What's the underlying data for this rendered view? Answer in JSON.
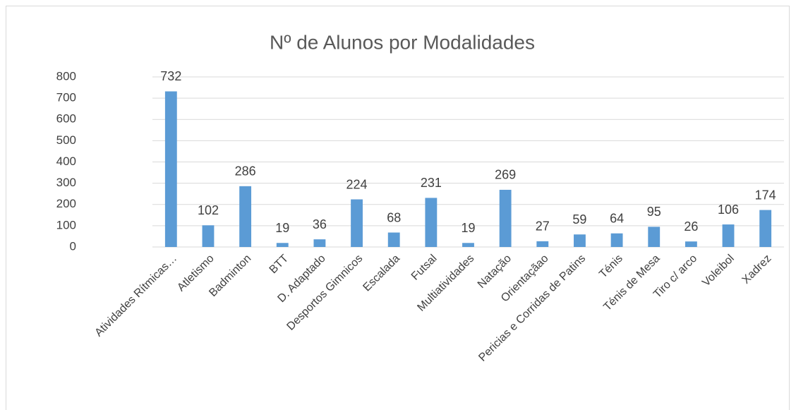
{
  "chart_data": {
    "type": "bar",
    "title": "Nº de Alunos por Modalidades",
    "categories": [
      "Atividades Rítmicas…",
      "Atletismo",
      "Badminton",
      "BTT",
      "D. Adaptado",
      "Desportos Gimnicos",
      "Escalada",
      "Futsal",
      "Multiatividades",
      "Natação",
      "Orientaçãao",
      "Pericias e Corridas de Patins",
      "Ténis",
      "Ténis de Mesa",
      "Tiro c/ arco",
      "Voleibol",
      "Xadrez"
    ],
    "values": [
      732,
      102,
      286,
      19,
      36,
      224,
      68,
      231,
      19,
      269,
      27,
      59,
      64,
      95,
      26,
      106,
      174
    ],
    "color": "#5b9bd5",
    "ylim": [
      0,
      800
    ],
    "yticks": [
      0,
      100,
      200,
      300,
      400,
      500,
      600,
      700,
      800
    ],
    "grid": true
  }
}
